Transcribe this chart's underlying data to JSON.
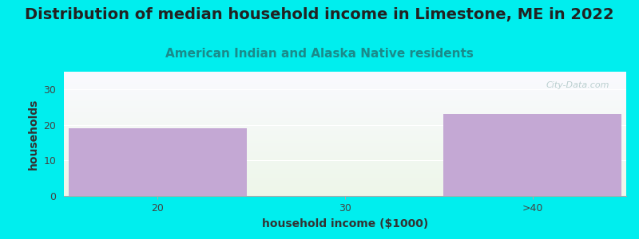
{
  "title": "Distribution of median household income in Limestone, ME in 2022",
  "subtitle": "American Indian and Alaska Native residents",
  "categories": [
    "20",
    "30",
    ">40"
  ],
  "values": [
    19,
    0,
    23
  ],
  "bar_color": "#c4a8d4",
  "xlabel": "household income ($1000)",
  "ylabel": "households",
  "ylim": [
    0,
    35
  ],
  "yticks": [
    0,
    10,
    20,
    30
  ],
  "background_color": "#00eeee",
  "plot_bg_topleft": "#e8f5e0",
  "plot_bg_bottomright": "#f8f8ff",
  "title_fontsize": 14,
  "subtitle_fontsize": 11,
  "subtitle_color": "#1a8a8a",
  "axis_label_fontsize": 10,
  "tick_fontsize": 9,
  "watermark": "City-Data.com",
  "bar_width": 0.95
}
